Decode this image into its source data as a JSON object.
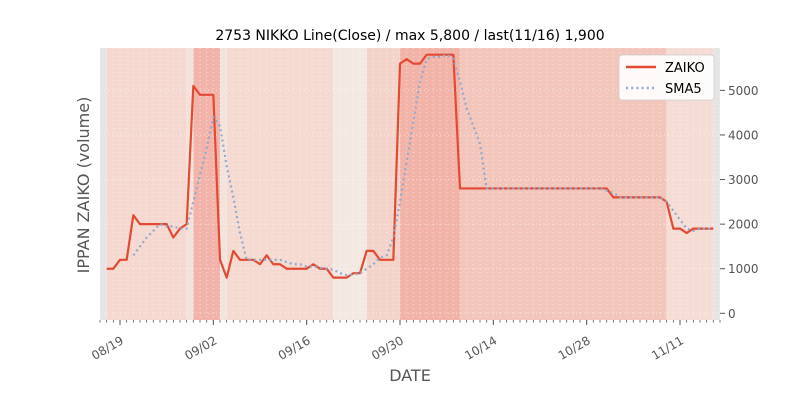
{
  "chart_data": {
    "type": "line",
    "title": "2753 NIKKO Line(Close) / max 5,800 / last(11/16) 1,900",
    "xlabel": "DATE",
    "ylabel": "IPPAN ZAIKO (volume)",
    "ylim": [
      -150,
      5950
    ],
    "yticks": [
      0,
      1000,
      2000,
      3000,
      4000,
      5000
    ],
    "ytick_labels": [
      "0",
      "1000",
      "2000",
      "3000",
      "4000",
      "5000"
    ],
    "xlim": [
      "08/16",
      "11/17"
    ],
    "xticks": [
      "08/19",
      "09/02",
      "09/16",
      "09/30",
      "10/14",
      "10/28",
      "11/11"
    ],
    "x_minor_ticks": "daily",
    "grid": true,
    "legend": "top-right",
    "series": [
      {
        "name": "ZAIKO",
        "color": "#e24a33",
        "style": "solid",
        "points": [
          [
            "08/17",
            1000
          ],
          [
            "08/18",
            1000
          ],
          [
            "08/19",
            1200
          ],
          [
            "08/20",
            1200
          ],
          [
            "08/21",
            2200
          ],
          [
            "08/22",
            2000
          ],
          [
            "08/23",
            2000
          ],
          [
            "08/24",
            2000
          ],
          [
            "08/25",
            2000
          ],
          [
            "08/26",
            2000
          ],
          [
            "08/27",
            1700
          ],
          [
            "08/28",
            1900
          ],
          [
            "08/29",
            2000
          ],
          [
            "08/30",
            5100
          ],
          [
            "08/31",
            4900
          ],
          [
            "09/01",
            4900
          ],
          [
            "09/02",
            4900
          ],
          [
            "09/03",
            1200
          ],
          [
            "09/04",
            800
          ],
          [
            "09/05",
            1400
          ],
          [
            "09/06",
            1200
          ],
          [
            "09/07",
            1200
          ],
          [
            "09/08",
            1200
          ],
          [
            "09/09",
            1100
          ],
          [
            "09/10",
            1300
          ],
          [
            "09/11",
            1100
          ],
          [
            "09/12",
            1100
          ],
          [
            "09/13",
            1000
          ],
          [
            "09/14",
            1000
          ],
          [
            "09/15",
            1000
          ],
          [
            "09/16",
            1000
          ],
          [
            "09/17",
            1100
          ],
          [
            "09/18",
            1000
          ],
          [
            "09/19",
            1000
          ],
          [
            "09/20",
            800
          ],
          [
            "09/21",
            800
          ],
          [
            "09/22",
            800
          ],
          [
            "09/23",
            900
          ],
          [
            "09/24",
            900
          ],
          [
            "09/25",
            1400
          ],
          [
            "09/26",
            1400
          ],
          [
            "09/27",
            1200
          ],
          [
            "09/28",
            1200
          ],
          [
            "09/29",
            1200
          ],
          [
            "09/30",
            5600
          ],
          [
            "10/01",
            5700
          ],
          [
            "10/02",
            5600
          ],
          [
            "10/03",
            5600
          ],
          [
            "10/04",
            5800
          ],
          [
            "10/05",
            5800
          ],
          [
            "10/06",
            5800
          ],
          [
            "10/07",
            5800
          ],
          [
            "10/08",
            5800
          ],
          [
            "10/09",
            2800
          ],
          [
            "10/16",
            2800
          ],
          [
            "10/23",
            2800
          ],
          [
            "10/30",
            2800
          ],
          [
            "10/31",
            2800
          ],
          [
            "11/01",
            2600
          ],
          [
            "11/02",
            2600
          ],
          [
            "11/08",
            2600
          ],
          [
            "11/09",
            2500
          ],
          [
            "11/10",
            1900
          ],
          [
            "11/11",
            1900
          ],
          [
            "11/12",
            1800
          ],
          [
            "11/13",
            1900
          ],
          [
            "11/14",
            1900
          ],
          [
            "11/15",
            1900
          ],
          [
            "11/16",
            1900
          ]
        ]
      },
      {
        "name": "SMA5",
        "color": "#8eaad0",
        "style": "dotted",
        "points": [
          [
            "08/21",
            1300
          ],
          [
            "08/22",
            1500
          ],
          [
            "08/23",
            1700
          ],
          [
            "08/24",
            1850
          ],
          [
            "08/25",
            2000
          ],
          [
            "08/26",
            1950
          ],
          [
            "08/27",
            1950
          ],
          [
            "08/28",
            1900
          ],
          [
            "08/29",
            1900
          ],
          [
            "08/30",
            2500
          ],
          [
            "08/31",
            3100
          ],
          [
            "09/01",
            3700
          ],
          [
            "09/02",
            4400
          ],
          [
            "09/03",
            4200
          ],
          [
            "09/04",
            3300
          ],
          [
            "09/05",
            2600
          ],
          [
            "09/06",
            1800
          ],
          [
            "09/07",
            1200
          ],
          [
            "09/08",
            1200
          ],
          [
            "09/09",
            1200
          ],
          [
            "09/12",
            1200
          ],
          [
            "09/13",
            1150
          ],
          [
            "09/14",
            1100
          ],
          [
            "09/15",
            1100
          ],
          [
            "09/16",
            1050
          ],
          [
            "09/17",
            1050
          ],
          [
            "09/18",
            1020
          ],
          [
            "09/19",
            1000
          ],
          [
            "09/20",
            980
          ],
          [
            "09/21",
            900
          ],
          [
            "09/22",
            860
          ],
          [
            "09/23",
            870
          ],
          [
            "09/24",
            900
          ],
          [
            "09/25",
            1000
          ],
          [
            "09/26",
            1100
          ],
          [
            "09/27",
            1250
          ],
          [
            "09/28",
            1300
          ],
          [
            "09/29",
            1700
          ],
          [
            "09/30",
            2500
          ],
          [
            "10/01",
            3400
          ],
          [
            "10/02",
            4300
          ],
          [
            "10/03",
            5200
          ],
          [
            "10/04",
            5700
          ],
          [
            "10/05",
            5750
          ],
          [
            "10/06",
            5750
          ],
          [
            "10/07",
            5800
          ],
          [
            "10/08",
            5700
          ],
          [
            "10/09",
            5200
          ],
          [
            "10/10",
            4600
          ],
          [
            "10/11",
            4200
          ],
          [
            "10/12",
            3800
          ],
          [
            "10/13",
            2800
          ],
          [
            "10/30",
            2800
          ],
          [
            "10/31",
            2750
          ],
          [
            "11/01",
            2700
          ],
          [
            "11/02",
            2600
          ],
          [
            "11/08",
            2600
          ],
          [
            "11/09",
            2500
          ],
          [
            "11/10",
            2300
          ],
          [
            "11/11",
            2100
          ],
          [
            "11/12",
            1900
          ],
          [
            "11/13",
            1850
          ],
          [
            "11/14",
            1900
          ],
          [
            "11/15",
            1900
          ],
          [
            "11/16",
            1900
          ]
        ]
      }
    ],
    "bands": [
      {
        "from": "08/16",
        "to": "08/17",
        "color": "#e5e5e5"
      },
      {
        "from": "08/17",
        "to": "08/29",
        "color": "#f5d9d1"
      },
      {
        "from": "08/29",
        "to": "08/30",
        "color": "#f2e2da"
      },
      {
        "from": "08/30",
        "to": "09/03",
        "color": "#f2b4aa"
      },
      {
        "from": "09/03",
        "to": "09/04",
        "color": "#f2e4dc"
      },
      {
        "from": "09/04",
        "to": "09/20",
        "color": "#f5dad2"
      },
      {
        "from": "09/20",
        "to": "09/25",
        "color": "#f4e8e2"
      },
      {
        "from": "09/25",
        "to": "09/30",
        "color": "#f4d3ca"
      },
      {
        "from": "09/30",
        "to": "10/09",
        "color": "#f2b3a8"
      },
      {
        "from": "10/09",
        "to": "11/09",
        "color": "#f3c6bc"
      },
      {
        "from": "11/09",
        "to": "11/16",
        "color": "#f5dcd5"
      },
      {
        "from": "11/16",
        "to": "11/17",
        "color": "#e5e5e5"
      }
    ]
  }
}
